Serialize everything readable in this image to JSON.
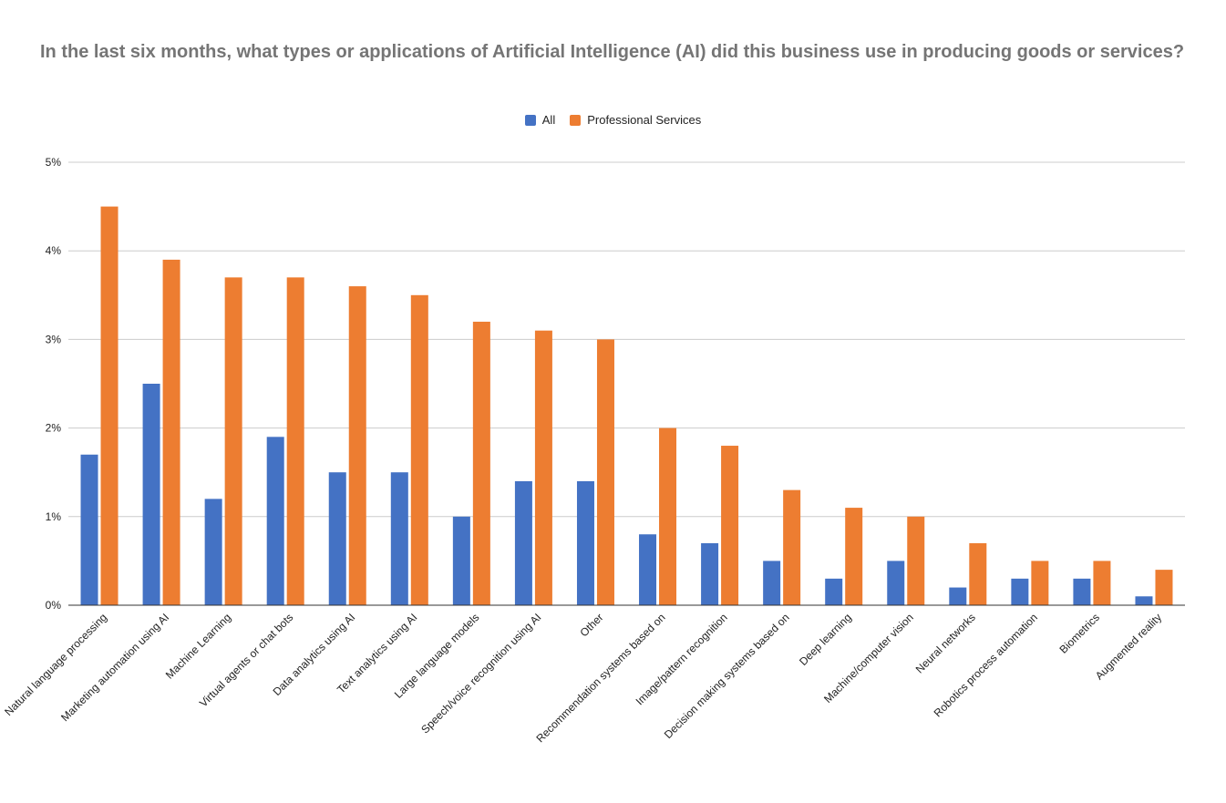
{
  "chart_data": {
    "type": "bar",
    "title": "In the last six months, what types or applications of Artificial Intelligence (AI) did this business use in producing goods or services?",
    "xlabel": "",
    "ylabel": "",
    "ylim": [
      0,
      5
    ],
    "y_ticks": [
      0,
      1,
      2,
      3,
      4,
      5
    ],
    "y_tick_labels": [
      "0%",
      "1%",
      "2%",
      "3%",
      "4%",
      "5%"
    ],
    "grid": true,
    "legend_position": "top-center",
    "categories": [
      "Natural language processing",
      "Marketing automation using AI",
      "Machine Learning",
      "Virtual agents or chat bots",
      "Data analytics using AI",
      "Text analytics using AI",
      "Large language models",
      "Speech/voice recognition using AI",
      "Other",
      "Recommendation systems based on",
      "Image/pattern recognition",
      "Decision making systems based on",
      "Deep learning",
      "Machine/computer vision",
      "Neural networks",
      "Robotics process automation",
      "Biometrics",
      "Augmented reality"
    ],
    "series": [
      {
        "name": "All",
        "color": "#4472C4",
        "values": [
          1.7,
          2.5,
          1.2,
          1.9,
          1.5,
          1.5,
          1.0,
          1.4,
          1.4,
          0.8,
          0.7,
          0.5,
          0.3,
          0.5,
          0.2,
          0.3,
          0.3,
          0.1
        ]
      },
      {
        "name": "Professional Services",
        "color": "#ED7D31",
        "values": [
          4.5,
          3.9,
          3.7,
          3.7,
          3.6,
          3.5,
          3.2,
          3.1,
          3.0,
          2.0,
          1.8,
          1.3,
          1.1,
          1.0,
          0.7,
          0.5,
          0.5,
          0.4
        ]
      }
    ]
  }
}
